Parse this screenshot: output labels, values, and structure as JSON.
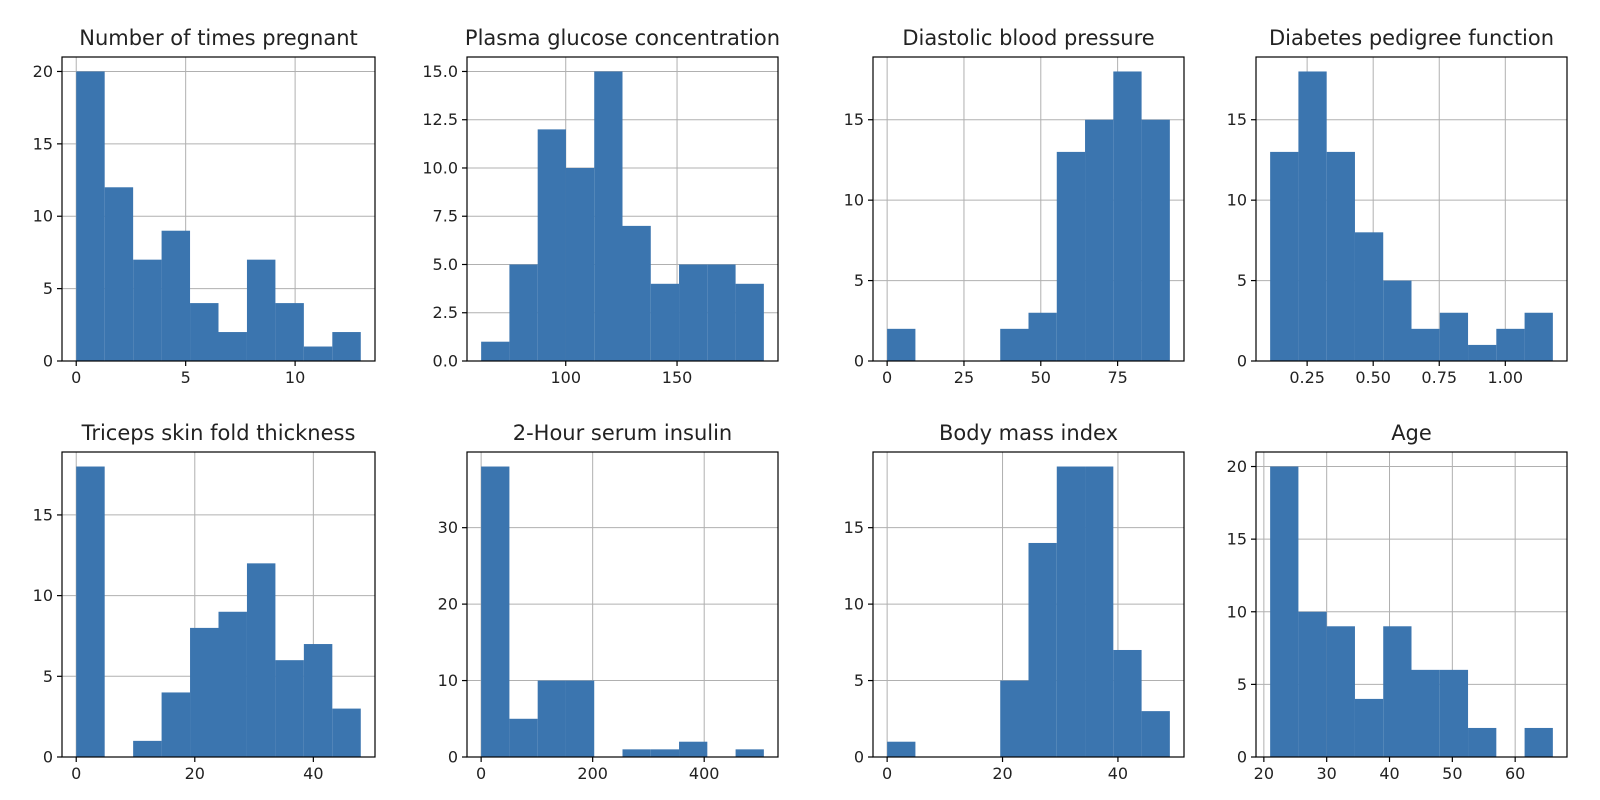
{
  "figure": {
    "bar_color": "#3b75af",
    "grid": true
  },
  "chart_data": [
    {
      "type": "bar",
      "title": "Number of times pregnant",
      "bin_edges": [
        0,
        1.3,
        2.6,
        3.9,
        5.2,
        6.5,
        7.8,
        9.1,
        10.4,
        11.7,
        13
      ],
      "counts": [
        20,
        12,
        7,
        9,
        4,
        2,
        7,
        4,
        1,
        2
      ],
      "xlim": [
        -0.65,
        13.65
      ],
      "ylim": [
        0,
        21
      ],
      "xticks": [
        0,
        5,
        10
      ],
      "yticks": [
        0,
        5,
        10,
        15,
        20
      ]
    },
    {
      "type": "bar",
      "title": "Plasma glucose concentration",
      "bin_edges": [
        62,
        74.7,
        87.4,
        100.1,
        112.8,
        125.5,
        138.2,
        150.9,
        163.6,
        176.3,
        189
      ],
      "counts": [
        1,
        5,
        12,
        10,
        15,
        7,
        4,
        5,
        5,
        4
      ],
      "xlim": [
        55.65,
        195.35
      ],
      "ylim": [
        0,
        15.75
      ],
      "xticks": [
        100,
        150
      ],
      "yticks": [
        0.0,
        2.5,
        5.0,
        7.5,
        10.0,
        12.5,
        15.0
      ]
    },
    {
      "type": "bar",
      "title": "Diastolic blood pressure",
      "bin_edges": [
        0,
        9.2,
        18.4,
        27.6,
        36.8,
        46,
        55.2,
        64.4,
        73.6,
        82.8,
        92
      ],
      "counts": [
        2,
        0,
        0,
        0,
        2,
        3,
        13,
        15,
        18,
        15
      ],
      "xlim": [
        -4.6,
        96.6
      ],
      "ylim": [
        0,
        18.9
      ],
      "xticks": [
        0,
        25,
        50,
        75
      ],
      "yticks": [
        0,
        5,
        10,
        15
      ]
    },
    {
      "type": "bar",
      "title": "Diabetes pedigree function",
      "bin_edges": [
        0.11,
        0.217,
        0.324,
        0.431,
        0.538,
        0.645,
        0.752,
        0.859,
        0.966,
        1.073,
        1.18
      ],
      "counts": [
        13,
        18,
        13,
        8,
        5,
        2,
        3,
        1,
        2,
        3
      ],
      "xlim": [
        0.0565,
        1.2335
      ],
      "ylim": [
        0,
        18.9
      ],
      "xticks": [
        0.25,
        0.5,
        0.75,
        1.0
      ],
      "xtick_labels": [
        "0.25",
        "0.50",
        "0.75",
        "1.00"
      ],
      "yticks": [
        0,
        5,
        10,
        15
      ]
    },
    {
      "type": "bar",
      "title": "Triceps skin fold thickness",
      "bin_edges": [
        0,
        4.8,
        9.6,
        14.4,
        19.2,
        24,
        28.8,
        33.6,
        38.4,
        43.2,
        48
      ],
      "counts": [
        18,
        0,
        1,
        4,
        8,
        9,
        12,
        6,
        7,
        3
      ],
      "xlim": [
        -2.4,
        50.4
      ],
      "ylim": [
        0,
        18.9
      ],
      "xticks": [
        0,
        20,
        40
      ],
      "yticks": [
        0,
        5,
        10,
        15
      ]
    },
    {
      "type": "bar",
      "title": "2-Hour serum insulin",
      "bin_edges": [
        0,
        50.7,
        101.4,
        152.1,
        202.8,
        253.5,
        304.2,
        354.9,
        405.6,
        456.3,
        507
      ],
      "counts": [
        38,
        5,
        10,
        10,
        0,
        1,
        1,
        2,
        0,
        1
      ],
      "xlim": [
        -25.35,
        532.35
      ],
      "ylim": [
        0,
        39.9
      ],
      "xticks": [
        0,
        200,
        400
      ],
      "yticks": [
        0,
        10,
        20,
        30
      ]
    },
    {
      "type": "bar",
      "title": "Body mass index",
      "bin_edges": [
        0,
        4.9,
        9.8,
        14.7,
        19.6,
        24.5,
        29.4,
        34.3,
        39.2,
        44.1,
        49
      ],
      "counts": [
        1,
        0,
        0,
        0,
        5,
        14,
        19,
        19,
        7,
        3
      ],
      "xlim": [
        -2.45,
        51.45
      ],
      "ylim": [
        0,
        19.95
      ],
      "xticks": [
        0,
        20,
        40
      ],
      "yticks": [
        0,
        5,
        10,
        15
      ]
    },
    {
      "type": "bar",
      "title": "Age",
      "bin_edges": [
        21,
        25.5,
        30,
        34.5,
        39,
        43.5,
        48,
        52.5,
        57,
        61.5,
        66
      ],
      "counts": [
        20,
        10,
        9,
        4,
        9,
        6,
        6,
        2,
        0,
        2
      ],
      "xlim": [
        18.75,
        68.25
      ],
      "ylim": [
        0,
        21
      ],
      "xticks": [
        20,
        30,
        40,
        50,
        60
      ],
      "yticks": [
        0,
        5,
        10,
        15,
        20
      ]
    }
  ]
}
